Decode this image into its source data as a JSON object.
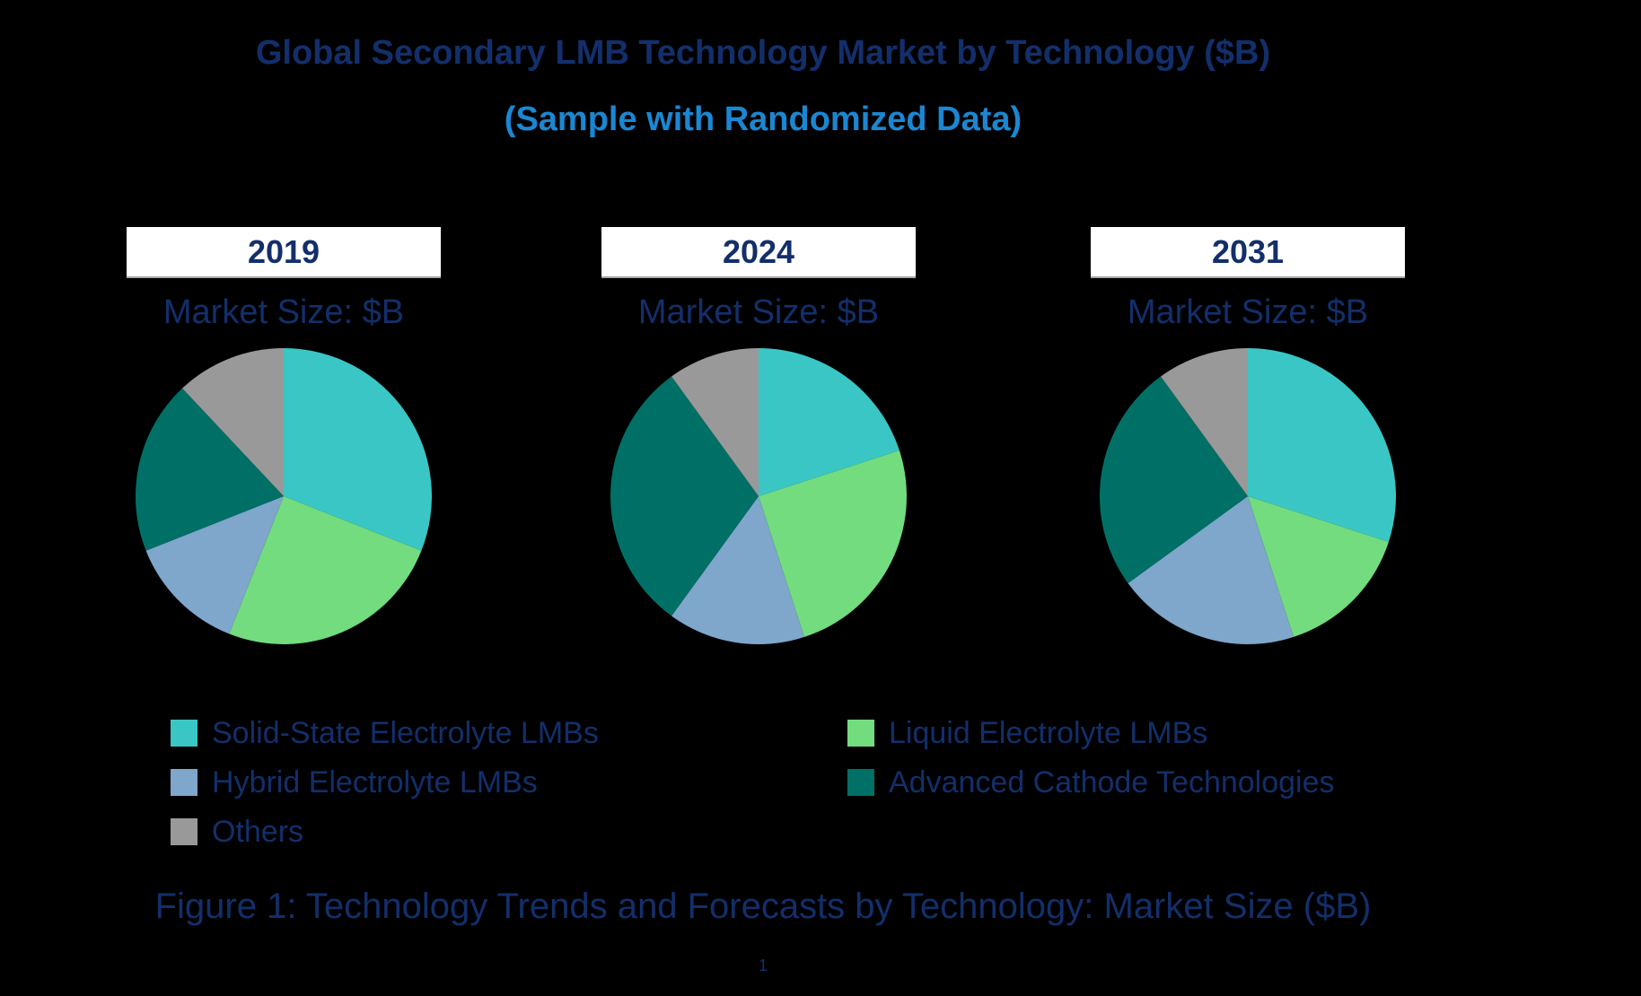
{
  "page": {
    "background_color": "#000000",
    "page_number": "1"
  },
  "header": {
    "title": "Global Secondary LMB Technology Market by Technology ($B)",
    "subtitle": "(Sample with Randomized Data)",
    "title_color": "#132F6B",
    "subtitle_color": "#1B87D2"
  },
  "caption": "Figure 1: Technology Trends and Forecasts by Technology: Market Size ($B)",
  "colors": {
    "solid_state": "#3AC6C4",
    "liquid": "#72DC7E",
    "hybrid": "#7FA6CB",
    "advanced_cathode": "#007066",
    "others": "#999999",
    "navy_text": "#132F6B",
    "subtitle_blue": "#1B87D2",
    "year_box_background": "#FFFFFF",
    "year_box_underline": "#A6A6A6"
  },
  "legend": {
    "columns": [
      {
        "items": [
          {
            "label": "Solid-State Electrolyte LMBs",
            "color": "#3AC6C4"
          },
          {
            "label": "Hybrid Electrolyte LMBs",
            "color": "#7FA6CB"
          },
          {
            "label": "Others",
            "color": "#999999"
          }
        ]
      },
      {
        "items": [
          {
            "label": "Liquid Electrolyte LMBs",
            "color": "#72DC7E"
          },
          {
            "label": "Advanced Cathode Technologies",
            "color": "#007066"
          }
        ]
      }
    ]
  },
  "chart_data": [
    {
      "type": "pie",
      "title": "2019",
      "size_label": "Market Size: $B",
      "categories": [
        "Solid-State Electrolyte LMBs",
        "Liquid Electrolyte LMBs",
        "Hybrid Electrolyte LMBs",
        "Advanced Cathode Technologies",
        "Others"
      ],
      "values": [
        31,
        25,
        13,
        19,
        12
      ],
      "unit": "percent share (estimated from slice angles)",
      "colors": [
        "#3AC6C4",
        "#72DC7E",
        "#7FA6CB",
        "#007066",
        "#999999"
      ],
      "start_angle_deg": 0,
      "direction": "clockwise",
      "legend_position": "bottom-shared"
    },
    {
      "type": "pie",
      "title": "2024",
      "size_label": "Market Size: $B",
      "categories": [
        "Solid-State Electrolyte LMBs",
        "Liquid Electrolyte LMBs",
        "Hybrid Electrolyte LMBs",
        "Advanced Cathode Technologies",
        "Others"
      ],
      "values": [
        20,
        25,
        15,
        30,
        10
      ],
      "unit": "percent share (estimated from slice angles)",
      "colors": [
        "#3AC6C4",
        "#72DC7E",
        "#7FA6CB",
        "#007066",
        "#999999"
      ],
      "start_angle_deg": 0,
      "direction": "clockwise",
      "legend_position": "bottom-shared"
    },
    {
      "type": "pie",
      "title": "2031",
      "size_label": "Market Size: $B",
      "categories": [
        "Solid-State Electrolyte LMBs",
        "Liquid Electrolyte LMBs",
        "Hybrid Electrolyte LMBs",
        "Advanced Cathode Technologies",
        "Others"
      ],
      "values": [
        30,
        15,
        20,
        25,
        10
      ],
      "unit": "percent share (estimated from slice angles)",
      "colors": [
        "#3AC6C4",
        "#72DC7E",
        "#7FA6CB",
        "#007066",
        "#999999"
      ],
      "start_angle_deg": 0,
      "direction": "clockwise",
      "legend_position": "bottom-shared"
    }
  ]
}
